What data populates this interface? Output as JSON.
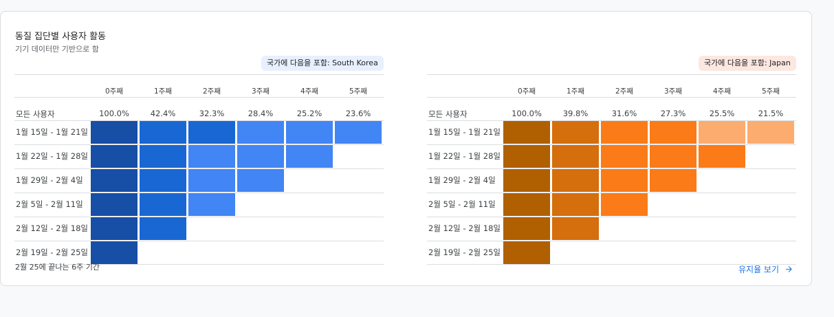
{
  "card": {
    "title": "동질 집단별 사용자 활동",
    "subtitle": "기기 데이터만 기반으로 함",
    "footer_note": "2월 25에 끝나는 6주 기간",
    "link_label": "유지율 보기"
  },
  "week_headers": [
    "0주째",
    "1주째",
    "2주째",
    "3주째",
    "4주째",
    "5주째"
  ],
  "all_users_label": "모든 사용자",
  "row_labels": [
    "1월 15일 - 1월 21일",
    "1월 22일 - 1월 28일",
    "1월 29일 - 2월 4일",
    "2월 5일 - 2월 11일",
    "2월 12일 - 2월 18일",
    "2월 19일 - 2월 25일"
  ],
  "panels": [
    {
      "chip_label": "국가에 다음을 포함: South Korea",
      "chip_bg": "#e8f0fe",
      "all_users": [
        "100.0%",
        "42.4%",
        "32.3%",
        "28.4%",
        "25.2%",
        "23.6%"
      ],
      "levels": [
        [
          3,
          2,
          2,
          1,
          1,
          1
        ],
        [
          3,
          2,
          1,
          1,
          1
        ],
        [
          3,
          2,
          1,
          1
        ],
        [
          3,
          2,
          1
        ],
        [
          3,
          2
        ],
        [
          3
        ]
      ],
      "palette": {
        "1": "#4285f4",
        "2": "#1967d2",
        "3": "#174ea6"
      }
    },
    {
      "chip_label": "국가에 다음을 포함: Japan",
      "chip_bg": "#fce8e0",
      "all_users": [
        "100.0%",
        "39.8%",
        "31.6%",
        "27.3%",
        "25.5%",
        "21.5%"
      ],
      "levels": [
        [
          3,
          2,
          1,
          1,
          0,
          0
        ],
        [
          3,
          2,
          1,
          1,
          1
        ],
        [
          3,
          2,
          1,
          1
        ],
        [
          3,
          2,
          1
        ],
        [
          3,
          2
        ],
        [
          3
        ]
      ],
      "palette": {
        "0": "#fdac70",
        "1": "#fa7b17",
        "2": "#d56e0c",
        "3": "#b06000"
      }
    }
  ]
}
